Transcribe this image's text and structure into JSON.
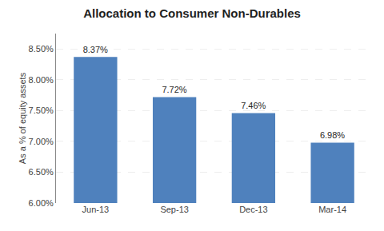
{
  "chart_data": {
    "type": "bar",
    "title": "Allocation to Consumer Non-Durables",
    "ylabel": "As a % of equity assets",
    "categories": [
      "Jun-13",
      "Sep-13",
      "Dec-13",
      "Mar-14"
    ],
    "values": [
      8.37,
      7.72,
      7.46,
      6.98
    ],
    "value_labels": [
      "8.37%",
      "7.72%",
      "7.46%",
      "6.98%"
    ],
    "data_labels": true,
    "color": "#4F81BD",
    "ylim": [
      6.0,
      8.75
    ],
    "yticks": [
      {
        "value": 6.0,
        "label": "6.00%"
      },
      {
        "value": 6.5,
        "label": "6.50%"
      },
      {
        "value": 7.0,
        "label": "7.00%"
      },
      {
        "value": 7.5,
        "label": "7.50%"
      },
      {
        "value": 8.0,
        "label": "8.00%"
      },
      {
        "value": 8.5,
        "label": "8.50%"
      }
    ],
    "grid": true
  }
}
